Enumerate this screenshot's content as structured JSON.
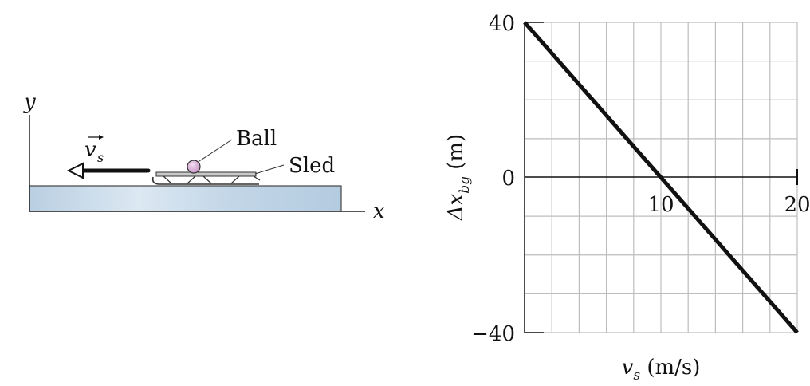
{
  "diagram": {
    "y_axis_label": "y",
    "x_axis_label": "x",
    "velocity_label": "v",
    "velocity_subscript": "s",
    "ball_label": "Ball",
    "sled_label": "Sled",
    "colors": {
      "ground": "#c4d7e6",
      "ball": "#d5a9d3",
      "arrow": "#111111"
    }
  },
  "chart_data": {
    "type": "line",
    "xlabel": "v_s (m/s)",
    "ylabel": "Δx_bg (m)",
    "xlim": [
      0,
      20
    ],
    "ylim": [
      -40,
      40
    ],
    "x_tick_labels": [
      "10",
      "20"
    ],
    "y_tick_labels": [
      "40",
      "0",
      "−40"
    ],
    "grid": true,
    "series": [
      {
        "x": [
          0,
          20
        ],
        "y": [
          40,
          -40
        ]
      }
    ]
  },
  "graph_labels": {
    "ylabel_main": "Δx",
    "ylabel_sub": "bg",
    "ylabel_unit": " (m)",
    "xlabel_main": "v",
    "xlabel_sub": "s",
    "xlabel_unit": " (m/s)"
  }
}
